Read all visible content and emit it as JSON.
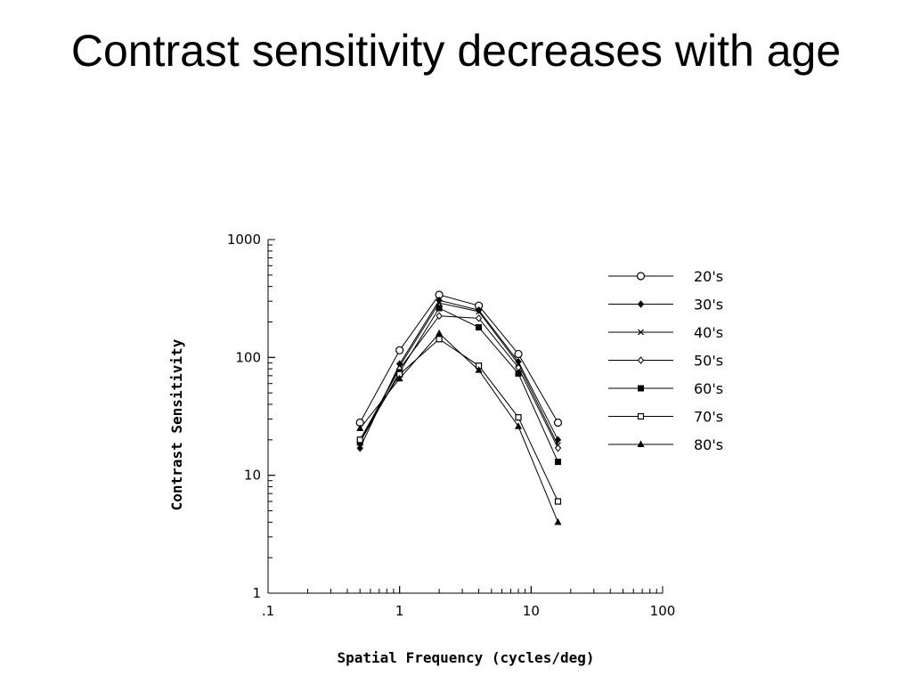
{
  "slide": {
    "title": "Contrast sensitivity decreases with age"
  },
  "chart_data": {
    "type": "line",
    "xscale": "log",
    "yscale": "log",
    "xlim": [
      0.1,
      100
    ],
    "ylim": [
      1,
      1000
    ],
    "xlabel": "Spatial Frequency (cycles/deg)",
    "ylabel": "Contrast Sensitivity",
    "xticks": [
      {
        "value": 0.1,
        "label": ".1"
      },
      {
        "value": 1,
        "label": "1"
      },
      {
        "value": 10,
        "label": "10"
      },
      {
        "value": 100,
        "label": "100"
      }
    ],
    "yticks": [
      {
        "value": 1,
        "label": "1"
      },
      {
        "value": 10,
        "label": "10"
      },
      {
        "value": 100,
        "label": "100"
      },
      {
        "value": 1000,
        "label": "1000"
      }
    ],
    "legend_position": "right",
    "x": [
      0.5,
      1,
      2,
      4,
      8,
      16
    ],
    "series": [
      {
        "name": "20's",
        "marker": "open-circle",
        "values": [
          28,
          115,
          340,
          275,
          107,
          28
        ]
      },
      {
        "name": "30's",
        "marker": "filled-diamond",
        "values": [
          17,
          88,
          305,
          252,
          92,
          20
        ]
      },
      {
        "name": "40's",
        "marker": "x",
        "values": [
          19,
          84,
          290,
          245,
          88,
          18
        ]
      },
      {
        "name": "50's",
        "marker": "open-diamond",
        "values": [
          20,
          80,
          225,
          215,
          82,
          17
        ]
      },
      {
        "name": "60's",
        "marker": "filled-square",
        "values": [
          19,
          75,
          262,
          180,
          73,
          13
        ]
      },
      {
        "name": "70's",
        "marker": "open-square",
        "values": [
          20,
          72,
          143,
          85,
          31,
          6
        ]
      },
      {
        "name": "80's",
        "marker": "filled-triangle",
        "values": [
          25,
          66,
          160,
          78,
          26,
          4
        ]
      }
    ]
  }
}
